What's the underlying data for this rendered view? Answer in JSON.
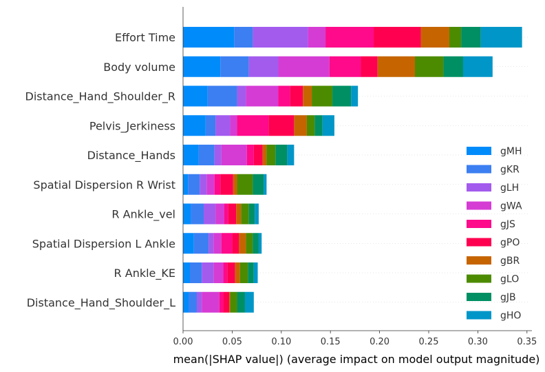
{
  "chart_data": {
    "type": "bar",
    "orientation": "horizontal",
    "stacked": true,
    "title": "",
    "xlabel": "mean(|SHAP value|) (average impact on model output magnitude)",
    "ylabel": "",
    "xlim": [
      0,
      0.355
    ],
    "x_ticks": [
      "0.00",
      "0.05",
      "0.10",
      "0.15",
      "0.20",
      "0.25",
      "0.30",
      "0.35"
    ],
    "legend_position": "right",
    "categories": [
      "Effort Time",
      "Body volume",
      "Distance_Hand_Shoulder_R",
      "Pelvis_Jerkiness",
      "Distance_Hands",
      "Spatial Dispersion R Wrist",
      "R Ankle_vel",
      "Spatial Dispersion L Ankle",
      "R Ankle_KE",
      "Distance_Hand_Shoulder_L"
    ],
    "series": [
      {
        "name": "gMH",
        "color": "#008bfb",
        "values": [
          0.052,
          0.038,
          0.025,
          0.023,
          0.016,
          0.005,
          0.008,
          0.011,
          0.007,
          0.006
        ]
      },
      {
        "name": "gKR",
        "color": "#3c7ff2",
        "values": [
          0.019,
          0.029,
          0.03,
          0.01,
          0.016,
          0.012,
          0.013,
          0.015,
          0.012,
          0.008
        ]
      },
      {
        "name": "gLH",
        "color": "#a35bee",
        "values": [
          0.056,
          0.03,
          0.009,
          0.015,
          0.007,
          0.007,
          0.012,
          0.005,
          0.012,
          0.005
        ]
      },
      {
        "name": "gWA",
        "color": "#d53cd4",
        "values": [
          0.018,
          0.052,
          0.033,
          0.007,
          0.026,
          0.008,
          0.009,
          0.008,
          0.01,
          0.018
        ]
      },
      {
        "name": "gJS",
        "color": "#fe0a8a",
        "values": [
          0.049,
          0.032,
          0.012,
          0.032,
          0.007,
          0.006,
          0.004,
          0.011,
          0.004,
          0.004
        ]
      },
      {
        "name": "gPO",
        "color": "#ff0051",
        "values": [
          0.048,
          0.017,
          0.013,
          0.026,
          0.009,
          0.013,
          0.008,
          0.007,
          0.008,
          0.006
        ]
      },
      {
        "name": "gBR",
        "color": "#c66500",
        "values": [
          0.029,
          0.038,
          0.009,
          0.013,
          0.004,
          0.004,
          0.005,
          0.007,
          0.005,
          0.001
        ]
      },
      {
        "name": "gLO",
        "color": "#4c8b00",
        "values": [
          0.012,
          0.029,
          0.021,
          0.008,
          0.009,
          0.016,
          0.008,
          0.007,
          0.008,
          0.007
        ]
      },
      {
        "name": "gJB",
        "color": "#008f63",
        "values": [
          0.02,
          0.02,
          0.019,
          0.008,
          0.012,
          0.011,
          0.006,
          0.006,
          0.006,
          0.008
        ]
      },
      {
        "name": "gHO",
        "color": "#0096c8",
        "values": [
          0.042,
          0.03,
          0.007,
          0.012,
          0.007,
          0.003,
          0.004,
          0.003,
          0.004,
          0.009
        ]
      }
    ]
  }
}
